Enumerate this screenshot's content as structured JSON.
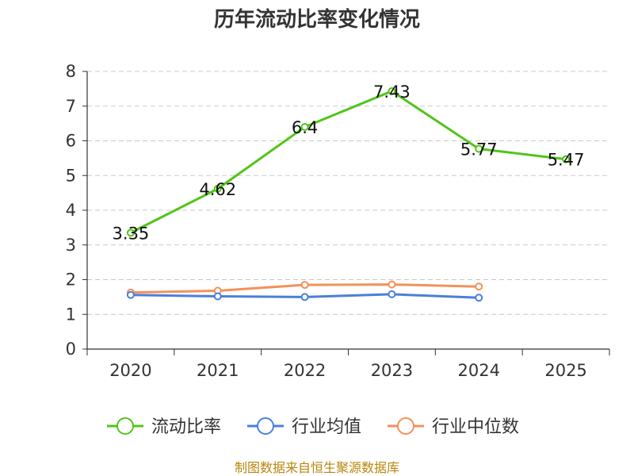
{
  "chart_data": {
    "type": "line",
    "title": "历年流动比率变化情况",
    "categories": [
      "2020",
      "2021",
      "2022",
      "2023",
      "2024",
      "2025"
    ],
    "ylim": [
      0,
      8
    ],
    "yticks": [
      0,
      1,
      2,
      3,
      4,
      5,
      6,
      7,
      8
    ],
    "grid": true,
    "legend_position": "bottom",
    "series": [
      {
        "name": "流动比率",
        "color": "#52c41a",
        "values": [
          3.35,
          4.62,
          6.4,
          7.43,
          5.77,
          5.47
        ],
        "labels": [
          "3.35",
          "4.62",
          "6.4",
          "7.43",
          "5.77",
          "5.47"
        ],
        "show_labels": true
      },
      {
        "name": "行业均值",
        "color": "#4a7fdc",
        "values": [
          1.56,
          1.52,
          1.5,
          1.58,
          1.48,
          null
        ],
        "show_labels": false
      },
      {
        "name": "行业中位数",
        "color": "#f5905a",
        "values": [
          1.63,
          1.68,
          1.85,
          1.86,
          1.8,
          null
        ],
        "show_labels": false
      }
    ],
    "source": "制图数据来自恒生聚源数据库"
  }
}
